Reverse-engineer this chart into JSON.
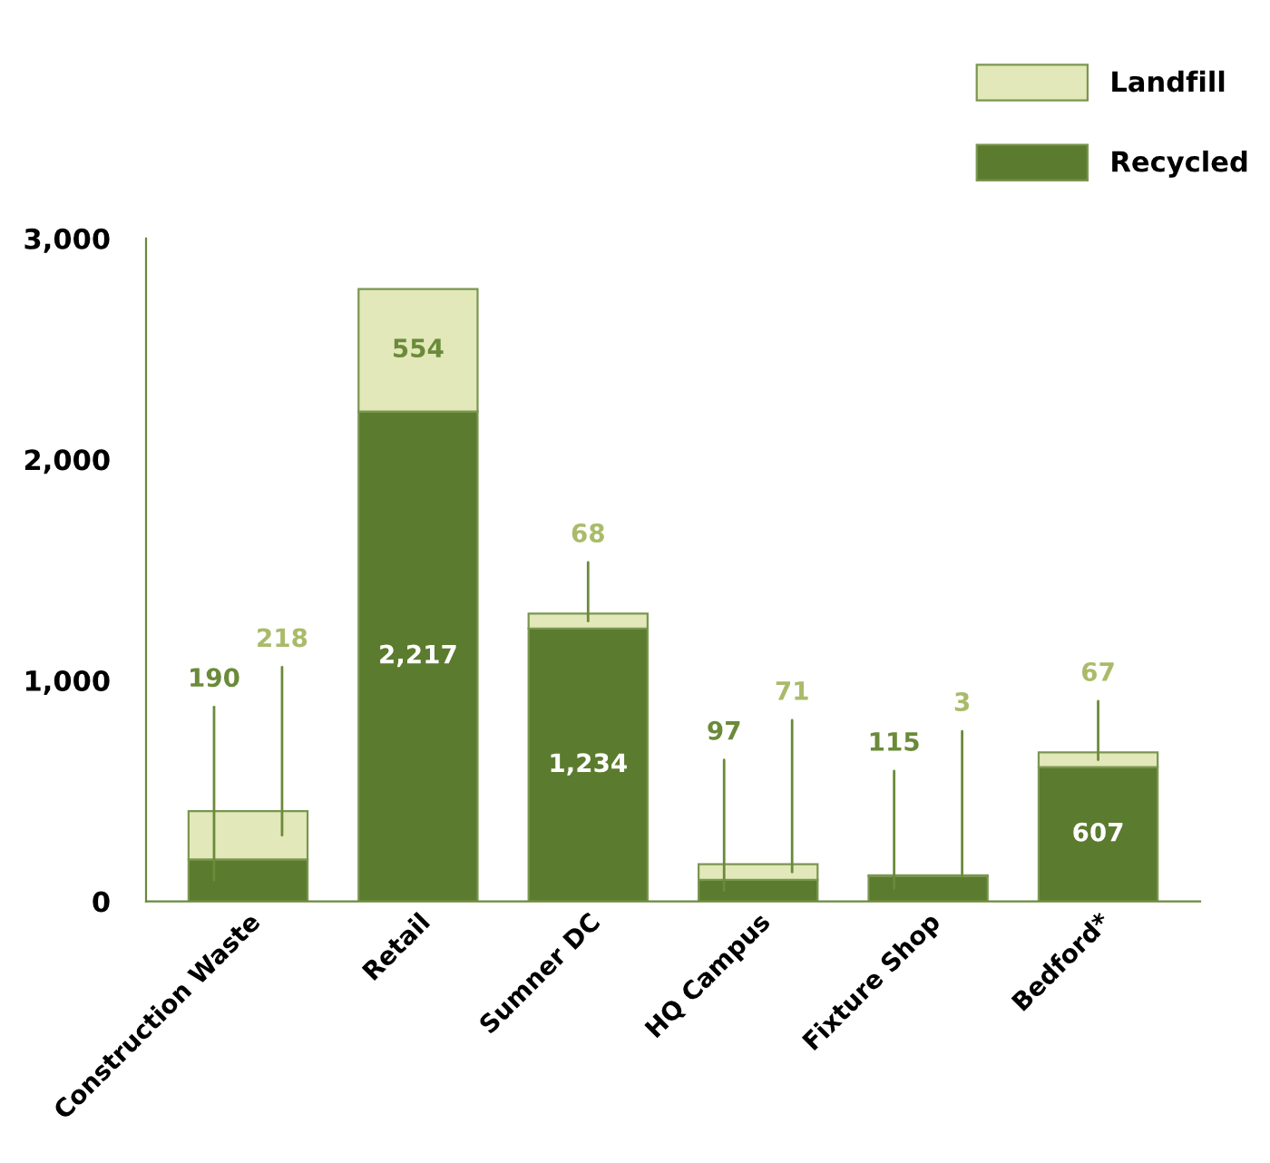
{
  "chart_data": {
    "type": "bar",
    "stacked": true,
    "categories": [
      "Construction Waste",
      "Retail",
      "Sumner DC",
      "HQ Campus",
      "Fixture Shop",
      "Bedford*"
    ],
    "series": [
      {
        "name": "Recycled",
        "color": "#5b7b2e",
        "values": [
          190,
          2217,
          1234,
          97,
          115,
          607
        ],
        "value_labels": [
          "190",
          "2,217",
          "1,234",
          "97",
          "115",
          "607"
        ]
      },
      {
        "name": "Landfill",
        "color": "#e2e8b9",
        "values": [
          218,
          554,
          68,
          71,
          3,
          67
        ],
        "value_labels": [
          "218",
          "554",
          "68",
          "71",
          "3",
          "67"
        ]
      }
    ],
    "ylim": [
      0,
      3000
    ],
    "yticks": [
      0,
      {
        "value": 1000,
        "label": "1,000"
      },
      {
        "value": 2000,
        "label": "2,000"
      },
      {
        "value": 3000,
        "label": "3,000"
      }
    ],
    "legend": "top right",
    "grid": false
  }
}
